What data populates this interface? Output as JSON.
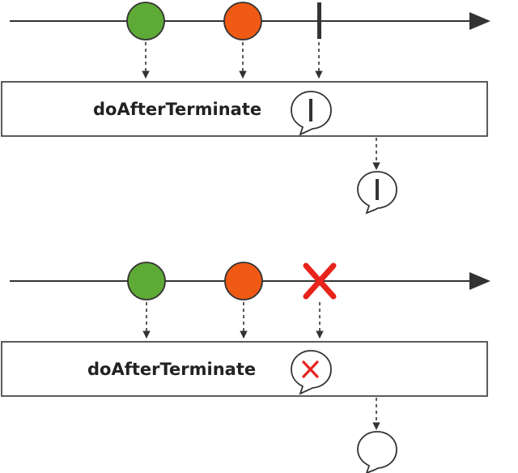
{
  "diagram": {
    "panels": [
      {
        "id": "complete",
        "operator_label": "doAfterTerminate",
        "terminal_event": "complete",
        "items": [
          {
            "color": "#5eaa36"
          },
          {
            "color": "#f05a14"
          }
        ]
      },
      {
        "id": "error",
        "operator_label": "doAfterTerminate",
        "terminal_event": "error",
        "items": [
          {
            "color": "#5eaa36"
          },
          {
            "color": "#f05a14"
          }
        ]
      }
    ],
    "colors": {
      "line": "#333333",
      "error_mark": "#e8231b",
      "box_border": "#333333"
    },
    "icons": [
      "arrow-head-icon",
      "speech-bubble-icon",
      "complete-bar-icon",
      "error-x-icon"
    ]
  }
}
